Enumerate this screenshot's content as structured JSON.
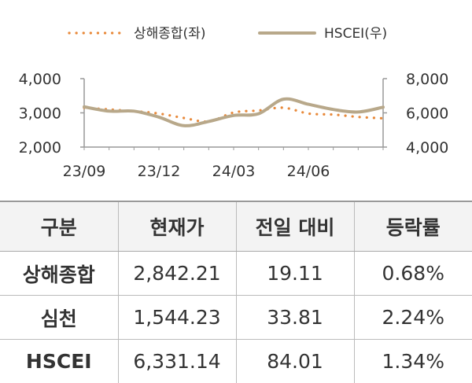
{
  "chart_data": {
    "type": "line",
    "legend": {
      "placement": "top",
      "items": [
        "상해종합(좌)",
        "HSCEI(우)"
      ]
    },
    "x_ticks": [
      "23/09",
      "23/12",
      "24/03",
      "24/06"
    ],
    "x_range": [
      "2023-09",
      "2024-09"
    ],
    "y_left": {
      "ticks": [
        "4,000",
        "3,000",
        "2,000"
      ],
      "range": [
        2000,
        4000
      ]
    },
    "y_right": {
      "ticks": [
        "8,000",
        "6,000",
        "4,000"
      ],
      "range": [
        4000,
        8000
      ]
    },
    "grid": false,
    "series": [
      {
        "name": "상해종합(좌)",
        "axis": "left",
        "color": "#E8893A",
        "style": "dotted",
        "x": [
          "2023-09",
          "2023-10",
          "2023-11",
          "2023-12",
          "2024-01",
          "2024-02",
          "2024-03",
          "2024-04",
          "2024-05",
          "2024-06",
          "2024-07",
          "2024-08",
          "2024-09"
        ],
        "values": [
          3150,
          3100,
          3050,
          2980,
          2850,
          2750,
          3010,
          3070,
          3150,
          2980,
          2950,
          2880,
          2840
        ]
      },
      {
        "name": "HSCEI(우)",
        "axis": "right",
        "color": "#B8A88A",
        "style": "solid",
        "x": [
          "2023-09",
          "2023-10",
          "2023-11",
          "2023-12",
          "2024-01",
          "2024-02",
          "2024-03",
          "2024-04",
          "2024-05",
          "2024-06",
          "2024-07",
          "2024-08",
          "2024-09"
        ],
        "values": [
          6350,
          6100,
          6100,
          5750,
          5250,
          5500,
          5850,
          5950,
          6800,
          6500,
          6200,
          6050,
          6330
        ]
      }
    ]
  },
  "table": {
    "headers": [
      "구분",
      "현재가",
      "전일 대비",
      "등락률"
    ],
    "rows": [
      [
        "상해종합",
        "2,842.21",
        "19.11",
        "0.68%"
      ],
      [
        "심천",
        "1,544.23",
        "33.81",
        "2.24%"
      ],
      [
        "HSCEI",
        "6,331.14",
        "84.01",
        "1.34%"
      ]
    ]
  }
}
